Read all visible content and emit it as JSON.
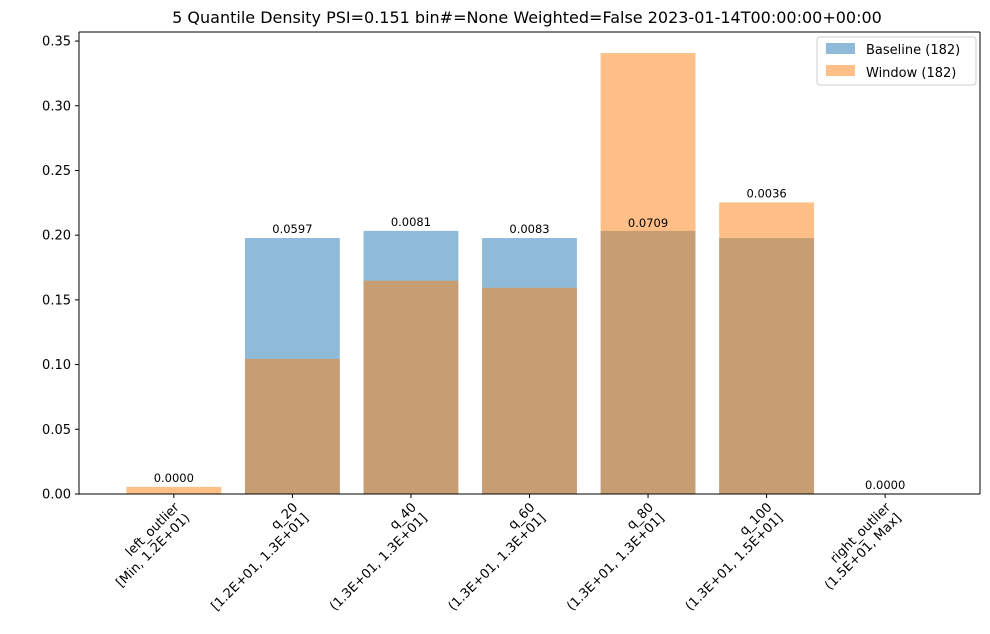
{
  "chart_data": {
    "type": "bar",
    "title": "5 Quantile Density PSI=0.151 bin#=None Weighted=False 2023-01-14T00:00:00+00:00",
    "xlabel": "",
    "ylabel": "",
    "ylim": [
      0,
      0.357
    ],
    "yticks": [
      "0.00",
      "0.05",
      "0.10",
      "0.15",
      "0.20",
      "0.25",
      "0.30",
      "0.35"
    ],
    "categories": [
      [
        "left_outlier",
        "[Min, 1.2E+01)"
      ],
      [
        "q_20",
        "[1.2E+01, 1.3E+01]"
      ],
      [
        "q_40",
        "(1.3E+01, 1.3E+01]"
      ],
      [
        "q_60",
        "(1.3E+01, 1.3E+01]"
      ],
      [
        "q_80",
        "(1.3E+01, 1.3E+01]"
      ],
      [
        "q_100",
        "(1.3E+01, 1.5E+01]"
      ],
      [
        "right_outlier",
        "(1.5E+01, Max]"
      ]
    ],
    "series": [
      {
        "name": "Baseline (182)",
        "color": "#1f77b4",
        "opacity": 0.5,
        "values": [
          0,
          0.1978,
          0.2033,
          0.1978,
          0.2033,
          0.1978,
          0
        ]
      },
      {
        "name": "Window (182)",
        "color": "#ff7f0e",
        "opacity": 0.5,
        "values": [
          0.0055,
          0.1044,
          0.1648,
          0.1593,
          0.3407,
          0.2253,
          0
        ]
      }
    ],
    "bar_labels": [
      "0.0000",
      "0.0597",
      "0.0081",
      "0.0083",
      "0.0709",
      "0.0036",
      "0.0000"
    ],
    "legend_position": "top-right",
    "grid": false
  }
}
